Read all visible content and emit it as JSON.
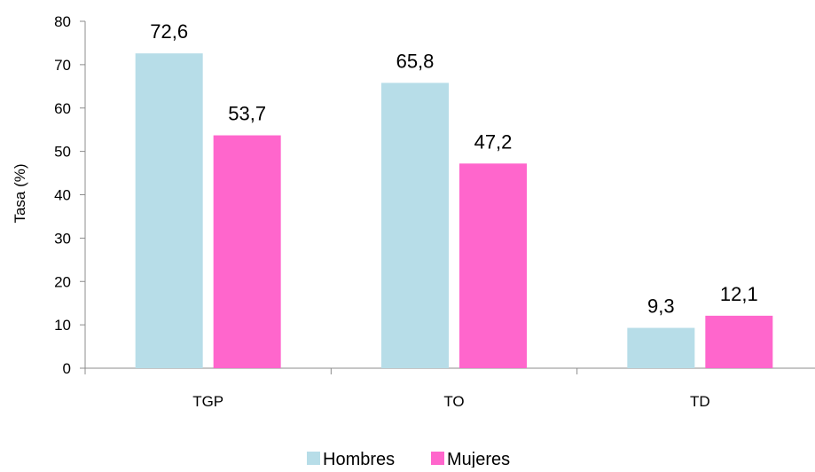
{
  "chart_data": {
    "type": "bar",
    "title": "",
    "xlabel": "",
    "ylabel": "Tasa (%)",
    "categories": [
      "TGP",
      "TO",
      "TD"
    ],
    "series": [
      {
        "name": "Hombres",
        "values": [
          72.6,
          65.8,
          9.3
        ],
        "labels": [
          "72,6",
          "65,8",
          "9,3"
        ],
        "color": "#b7dde8"
      },
      {
        "name": "Mujeres",
        "values": [
          53.7,
          47.2,
          12.1
        ],
        "labels": [
          "53,7",
          "47,2",
          "12,1"
        ],
        "color": "#ff66cc"
      }
    ],
    "ylim": [
      0,
      80
    ],
    "yticks": [
      0,
      10,
      20,
      30,
      40,
      50,
      60,
      70,
      80
    ],
    "grid": false,
    "legend_position": "bottom"
  }
}
